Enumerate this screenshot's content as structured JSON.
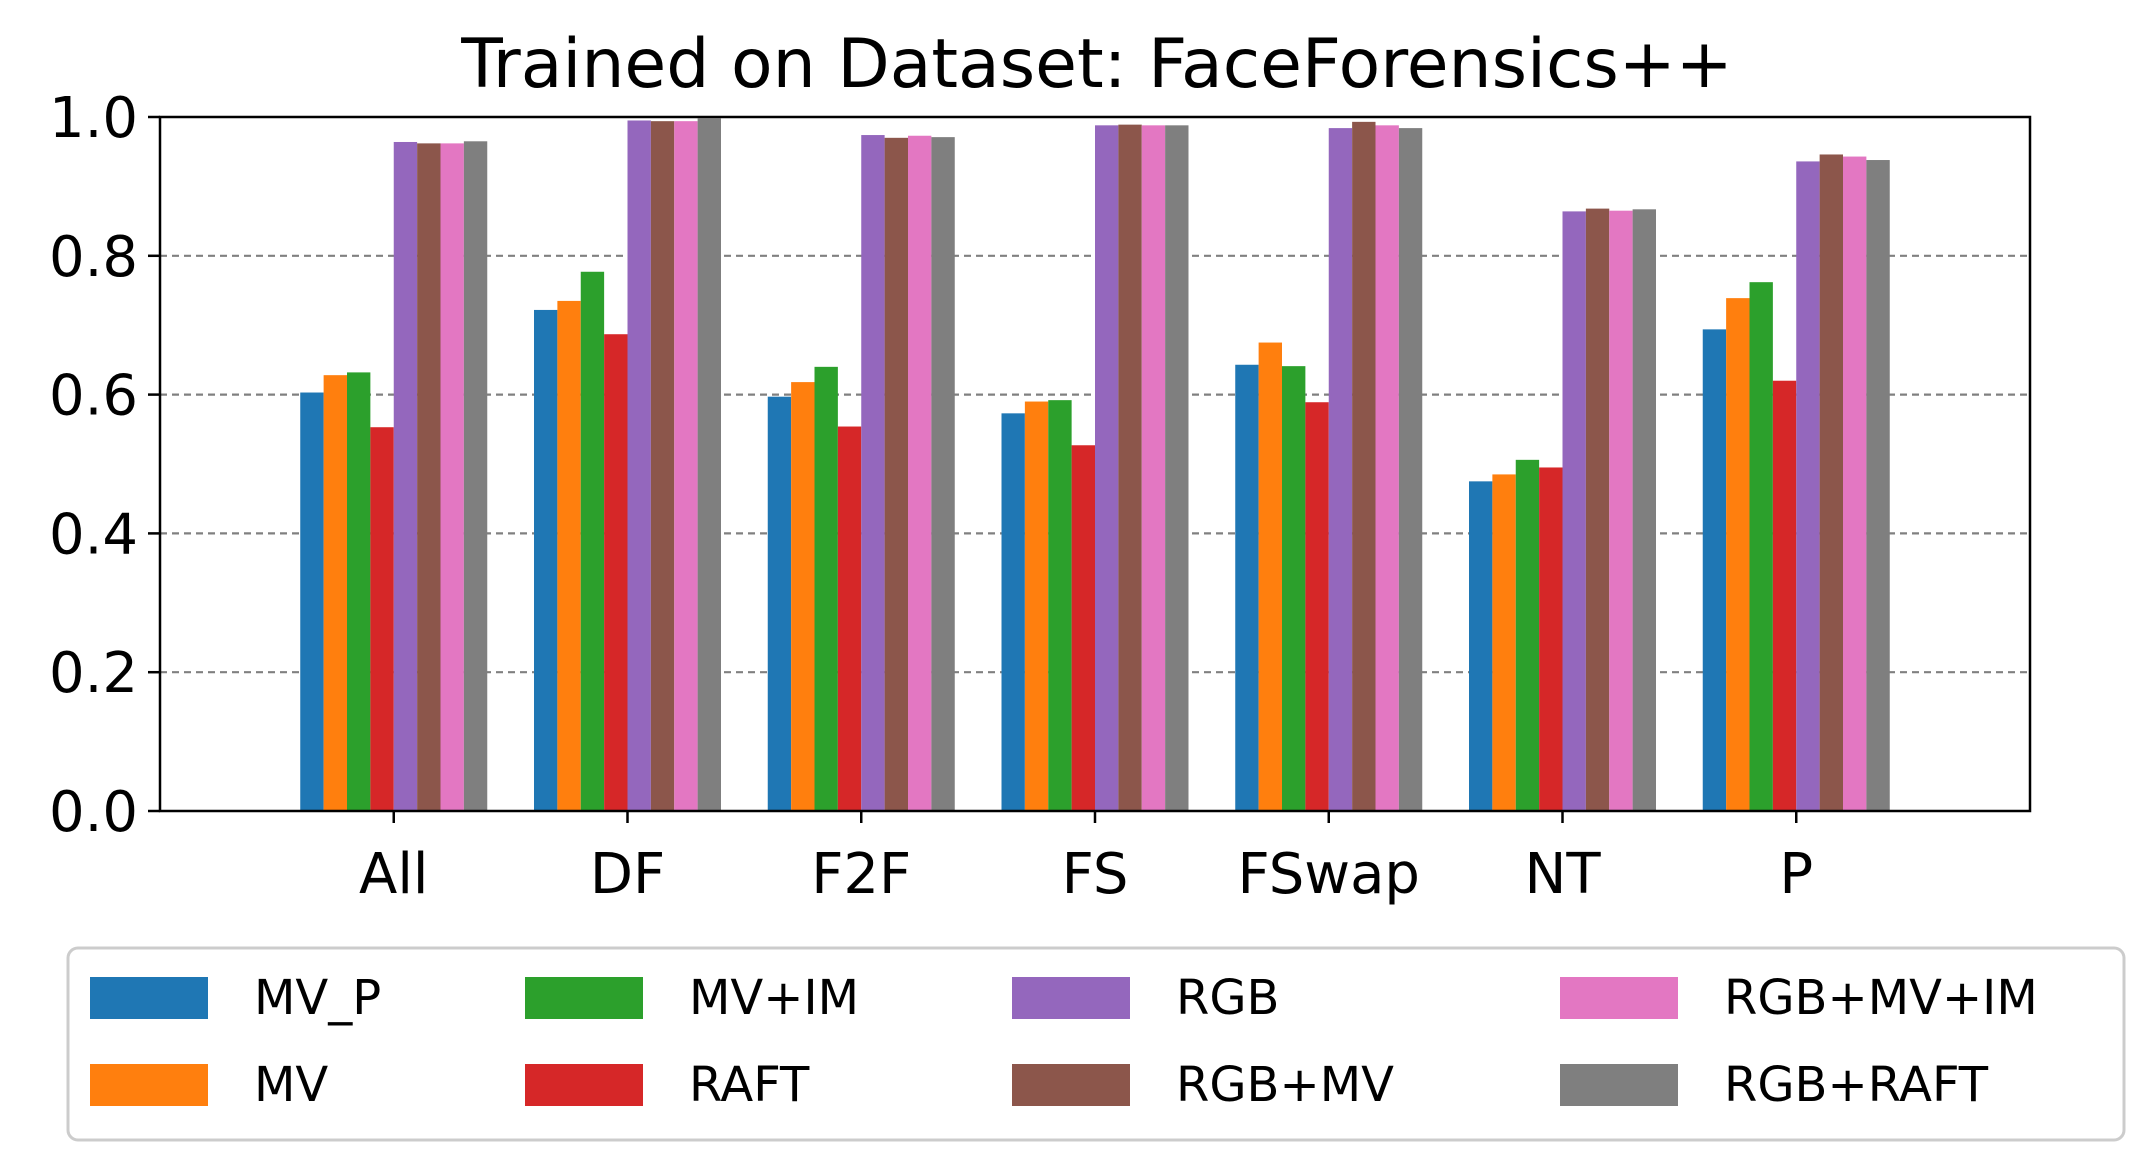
{
  "chart_data": {
    "type": "bar",
    "title": "Trained on Dataset: FaceForensics++",
    "xlabel": "",
    "ylabel": "",
    "ylim": [
      0.0,
      1.0
    ],
    "yticks": [
      "0.0",
      "0.2",
      "0.4",
      "0.6",
      "0.8",
      "1.0"
    ],
    "grid": "horizontal dashed",
    "legend_position": "bottom",
    "categories": [
      "All",
      "DF",
      "F2F",
      "FS",
      "FSwap",
      "NT",
      "P"
    ],
    "series": [
      {
        "name": "MV_P",
        "color": "#1f77b4",
        "values": [
          0.603,
          0.722,
          0.597,
          0.573,
          0.643,
          0.475,
          0.694
        ]
      },
      {
        "name": "MV",
        "color": "#ff7f0e",
        "values": [
          0.628,
          0.735,
          0.618,
          0.59,
          0.675,
          0.485,
          0.739
        ]
      },
      {
        "name": "MV+IM",
        "color": "#2ca02c",
        "values": [
          0.632,
          0.777,
          0.64,
          0.592,
          0.641,
          0.506,
          0.762
        ]
      },
      {
        "name": "RAFT",
        "color": "#d62728",
        "values": [
          0.553,
          0.687,
          0.554,
          0.527,
          0.589,
          0.495,
          0.62
        ]
      },
      {
        "name": "RGB",
        "color": "#9467bd",
        "values": [
          0.964,
          0.995,
          0.974,
          0.988,
          0.984,
          0.864,
          0.936
        ]
      },
      {
        "name": "RGB+MV",
        "color": "#8c564b",
        "values": [
          0.962,
          0.994,
          0.97,
          0.989,
          0.993,
          0.868,
          0.946
        ]
      },
      {
        "name": "RGB+MV+IM",
        "color": "#e377c2",
        "values": [
          0.962,
          0.994,
          0.973,
          0.988,
          0.988,
          0.865,
          0.943
        ]
      },
      {
        "name": "RGB+RAFT",
        "color": "#7f7f7f",
        "values": [
          0.965,
          0.998,
          0.971,
          0.988,
          0.984,
          0.867,
          0.938
        ]
      }
    ]
  }
}
